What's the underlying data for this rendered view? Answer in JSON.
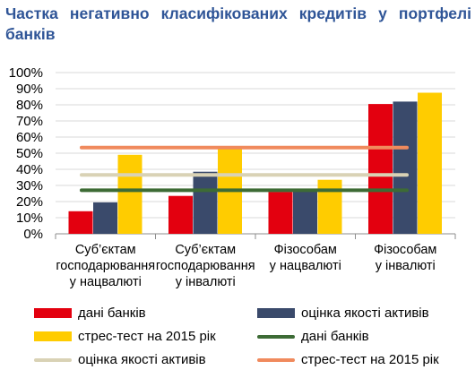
{
  "title": "Частка негативно класифікованих кредитів у портфелі банків",
  "colors": {
    "bank_data_bar": "#E3000F",
    "asset_quality_bar": "#3A4A6B",
    "stress_test_bar": "#FFCC00",
    "bank_data_line": "#3D6B35",
    "asset_quality_line": "#D9D2B5",
    "stress_test_line": "#F08A5D",
    "grid": "#D9D9D9",
    "title": "#2F5597"
  },
  "legend": [
    {
      "label": "дані банків",
      "kind": "bar",
      "color": "#E3000F"
    },
    {
      "label": "оцінка якості активів",
      "kind": "bar",
      "color": "#3A4A6B"
    },
    {
      "label": "стрес-тест на 2015 рік",
      "kind": "bar",
      "color": "#FFCC00"
    },
    {
      "label": "дані банків",
      "kind": "line",
      "color": "#3D6B35"
    },
    {
      "label": "оцінка якості активів",
      "kind": "line",
      "color": "#D9D2B5"
    },
    {
      "label": "стрес-тест на 2015 рік",
      "kind": "line",
      "color": "#F08A5D"
    }
  ],
  "chart_data": {
    "type": "bar",
    "ylim": [
      0,
      100
    ],
    "ytick_labels": [
      "0%",
      "10%",
      "20%",
      "30%",
      "40%",
      "50%",
      "60%",
      "70%",
      "80%",
      "90%",
      "100%"
    ],
    "grid": true,
    "legend_position": "bottom",
    "categories": [
      [
        "Суб’єктам",
        "господарювання",
        "у нацвалюті"
      ],
      [
        "Суб’єктам",
        "господарювання",
        "у інвалюті"
      ],
      [
        "Фізособам",
        "у нацвалюті"
      ],
      [
        "Фізособам",
        "у інвалюті"
      ]
    ],
    "series": [
      {
        "name": "дані банків",
        "type": "bar",
        "values": [
          14,
          23.5,
          26,
          80.5
        ]
      },
      {
        "name": "оцінка якості активів",
        "type": "bar",
        "values": [
          19.5,
          38.5,
          27,
          82
        ]
      },
      {
        "name": "стрес-тест на 2015 рік",
        "type": "bar",
        "values": [
          49,
          53,
          33.5,
          87.5
        ]
      },
      {
        "name": "дані банків",
        "type": "line",
        "value": 27
      },
      {
        "name": "оцінка якості активів",
        "type": "line",
        "value": 36.5
      },
      {
        "name": "стрес-тест на 2015 рік",
        "type": "line",
        "value": 53.5
      }
    ]
  }
}
